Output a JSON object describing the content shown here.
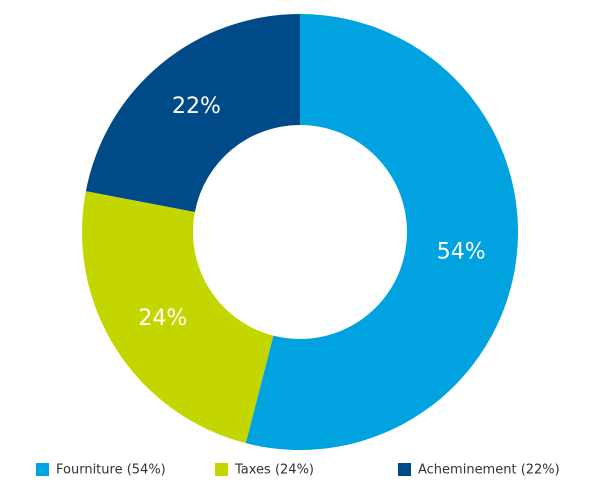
{
  "chart_data": {
    "type": "donut",
    "categories": [
      "Fourniture (54%)",
      "Taxes (24%)",
      "Acheminement (22%)"
    ],
    "values": [
      54,
      24,
      22
    ],
    "value_labels": [
      "54%",
      "24%",
      "22%"
    ],
    "colors": [
      "#00a3e0",
      "#c4d600",
      "#004b87"
    ]
  }
}
